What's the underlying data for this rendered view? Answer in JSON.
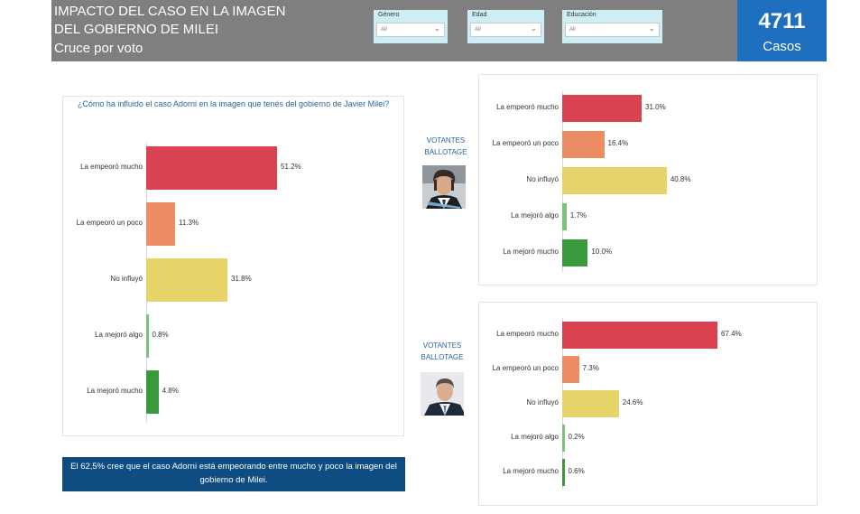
{
  "header": {
    "title_line1": "IMPACTO DEL CASO EN LA IMAGEN",
    "title_line2": "DEL GOBIERNO DE MILEI",
    "subtitle": "Cruce por voto"
  },
  "filters": [
    {
      "label": "Género",
      "value": "All"
    },
    {
      "label": "Edad",
      "value": "All"
    },
    {
      "label": "Educación",
      "value": "All"
    }
  ],
  "cases": {
    "count": "4711",
    "label": "Casos"
  },
  "vote_labels": {
    "milei": "VOTANTES BALLOTAGE",
    "massa": "VOTANTES BALLOTAGE"
  },
  "note": "El 62,5% cree que el caso Adorni está empeorando entre mucho y poco la imagen del gobierno de Milei.",
  "colors": {
    "La empeoró mucho": "#d9434f",
    "La empeoró un poco": "#ec8c63",
    "No influyó": "#e8d36a",
    "La mejoró algo": "#7cc47e",
    "La mejoró mucho": "#3a9a3e"
  },
  "chart_data": [
    {
      "type": "bar",
      "orientation": "horizontal",
      "title": "¿Cómo ha influido el caso Adorni en la imagen que tenés del gobierno de Javier Milei?",
      "categories": [
        "La empeoró mucho",
        "La empeoró un poco",
        "No influyó",
        "La mejoró algo",
        "La mejoró mucho"
      ],
      "values": [
        51.2,
        11.3,
        31.8,
        0.8,
        4.8
      ],
      "labels": [
        "51.2%",
        "11.3%",
        "31.8%",
        "0.8%",
        "4.8%"
      ]
    },
    {
      "type": "bar",
      "orientation": "horizontal",
      "title": "",
      "categories": [
        "La empeoró mucho",
        "La empeoró un poco",
        "No influyó",
        "La mejoró algo",
        "La mejoró mucho"
      ],
      "values": [
        31.0,
        16.4,
        40.8,
        1.7,
        10.0
      ],
      "labels": [
        "31.0%",
        "16.4%",
        "40.8%",
        "1.7%",
        "10.0%"
      ]
    },
    {
      "type": "bar",
      "orientation": "horizontal",
      "title": "",
      "categories": [
        "La empeoró mucho",
        "La empeoró un poco",
        "No influyó",
        "La mejoró algo",
        "La mejoró mucho"
      ],
      "values": [
        67.4,
        7.3,
        24.6,
        0.2,
        0.6
      ],
      "labels": [
        "67.4%",
        "7.3%",
        "24.6%",
        "0.2%",
        "0.6%"
      ]
    }
  ]
}
